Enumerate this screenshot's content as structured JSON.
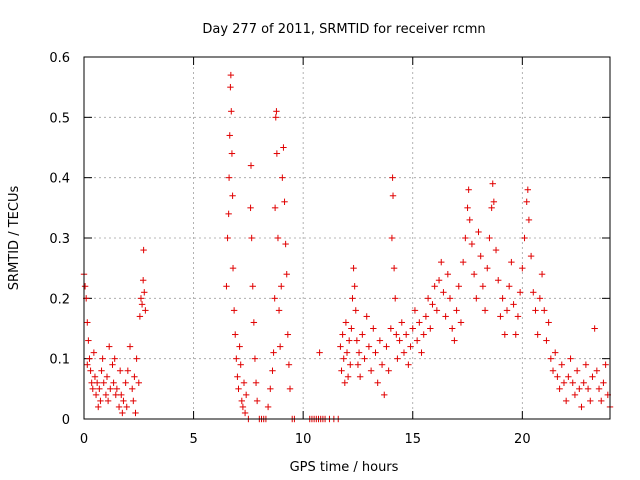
{
  "chart_data": {
    "type": "scatter",
    "title": "Day 277 of 2011, SRMTID for receiver rcmn",
    "xlabel": "GPS time / hours",
    "ylabel": "SRMTID / TECUs",
    "xlim": [
      0,
      24
    ],
    "ylim": [
      0,
      0.6
    ],
    "xticks": [
      0,
      5,
      10,
      15,
      20
    ],
    "xtick_labels": [
      "0",
      "5",
      "10",
      "15",
      "20"
    ],
    "yticks": [
      0,
      0.1,
      0.2,
      0.3,
      0.4,
      0.5,
      0.6
    ],
    "ytick_labels": [
      "0",
      "0.1",
      "0.2",
      "0.3",
      "0.4",
      "0.5",
      "0.6"
    ],
    "grid": true,
    "marker": "+",
    "series": [
      {
        "name": "SRMTID",
        "color": "#e00000",
        "points": [
          [
            0.0,
            0.24
          ],
          [
            0.05,
            0.22
          ],
          [
            0.1,
            0.2
          ],
          [
            0.15,
            0.16
          ],
          [
            0.2,
            0.13
          ],
          [
            0.25,
            0.1
          ],
          [
            0.3,
            0.08
          ],
          [
            0.35,
            0.06
          ],
          [
            0.4,
            0.05
          ],
          [
            0.5,
            0.07
          ],
          [
            0.55,
            0.04
          ],
          [
            0.6,
            0.06
          ],
          [
            0.7,
            0.05
          ],
          [
            0.75,
            0.03
          ],
          [
            0.8,
            0.08
          ],
          [
            0.9,
            0.06
          ],
          [
            1.0,
            0.04
          ],
          [
            1.05,
            0.07
          ],
          [
            1.1,
            0.03
          ],
          [
            1.2,
            0.05
          ],
          [
            1.3,
            0.09
          ],
          [
            1.35,
            0.06
          ],
          [
            1.4,
            0.1
          ],
          [
            1.5,
            0.05
          ],
          [
            1.6,
            0.02
          ],
          [
            1.7,
            0.04
          ],
          [
            1.75,
            0.01
          ],
          [
            1.8,
            0.03
          ],
          [
            1.9,
            0.06
          ],
          [
            2.0,
            0.08
          ],
          [
            2.1,
            0.12
          ],
          [
            2.2,
            0.05
          ],
          [
            2.3,
            0.07
          ],
          [
            2.4,
            0.1
          ],
          [
            2.5,
            0.06
          ],
          [
            2.55,
            0.17
          ],
          [
            2.6,
            0.2
          ],
          [
            2.65,
            0.19
          ],
          [
            2.7,
            0.23
          ],
          [
            2.72,
            0.28
          ],
          [
            2.75,
            0.21
          ],
          [
            2.8,
            0.18
          ],
          [
            0.15,
            0.09
          ],
          [
            0.45,
            0.11
          ],
          [
            0.65,
            0.02
          ],
          [
            0.85,
            0.1
          ],
          [
            1.15,
            0.12
          ],
          [
            1.45,
            0.04
          ],
          [
            1.65,
            0.08
          ],
          [
            1.95,
            0.02
          ],
          [
            2.25,
            0.03
          ],
          [
            2.35,
            0.01
          ],
          [
            6.5,
            0.22
          ],
          [
            6.55,
            0.3
          ],
          [
            6.6,
            0.34
          ],
          [
            6.62,
            0.4
          ],
          [
            6.65,
            0.47
          ],
          [
            6.68,
            0.55
          ],
          [
            6.7,
            0.57
          ],
          [
            6.72,
            0.51
          ],
          [
            6.75,
            0.44
          ],
          [
            6.78,
            0.37
          ],
          [
            6.8,
            0.25
          ],
          [
            6.85,
            0.18
          ],
          [
            6.9,
            0.14
          ],
          [
            6.95,
            0.1
          ],
          [
            7.0,
            0.07
          ],
          [
            7.05,
            0.05
          ],
          [
            7.1,
            0.12
          ],
          [
            7.15,
            0.09
          ],
          [
            7.2,
            0.03
          ],
          [
            7.25,
            0.02
          ],
          [
            7.3,
            0.06
          ],
          [
            7.35,
            0.01
          ],
          [
            7.4,
            0.04
          ],
          [
            7.5,
            0.0
          ],
          [
            7.6,
            0.35
          ],
          [
            7.62,
            0.42
          ],
          [
            7.65,
            0.3
          ],
          [
            7.7,
            0.22
          ],
          [
            7.75,
            0.16
          ],
          [
            7.8,
            0.1
          ],
          [
            7.85,
            0.06
          ],
          [
            7.9,
            0.03
          ],
          [
            8.0,
            0.0
          ],
          [
            8.1,
            0.0
          ],
          [
            8.2,
            0.0
          ],
          [
            8.3,
            0.0
          ],
          [
            8.4,
            0.02
          ],
          [
            8.5,
            0.05
          ],
          [
            8.6,
            0.08
          ],
          [
            8.65,
            0.11
          ],
          [
            8.7,
            0.2
          ],
          [
            8.72,
            0.35
          ],
          [
            8.75,
            0.5
          ],
          [
            8.78,
            0.51
          ],
          [
            8.8,
            0.44
          ],
          [
            8.85,
            0.3
          ],
          [
            8.9,
            0.18
          ],
          [
            8.95,
            0.12
          ],
          [
            9.0,
            0.22
          ],
          [
            9.05,
            0.4
          ],
          [
            9.1,
            0.45
          ],
          [
            9.15,
            0.36
          ],
          [
            9.2,
            0.29
          ],
          [
            9.25,
            0.24
          ],
          [
            9.3,
            0.14
          ],
          [
            9.35,
            0.09
          ],
          [
            9.4,
            0.05
          ],
          [
            9.5,
            0.0
          ],
          [
            9.6,
            0.0
          ],
          [
            10.3,
            0.0
          ],
          [
            10.4,
            0.0
          ],
          [
            10.5,
            0.0
          ],
          [
            10.6,
            0.0
          ],
          [
            10.7,
            0.0
          ],
          [
            10.75,
            0.11
          ],
          [
            10.8,
            0.0
          ],
          [
            10.9,
            0.0
          ],
          [
            11.0,
            0.0
          ],
          [
            11.2,
            0.0
          ],
          [
            11.4,
            0.0
          ],
          [
            11.6,
            0.0
          ],
          [
            11.7,
            0.12
          ],
          [
            11.75,
            0.08
          ],
          [
            11.8,
            0.14
          ],
          [
            11.85,
            0.1
          ],
          [
            11.9,
            0.06
          ],
          [
            11.95,
            0.16
          ],
          [
            12.0,
            0.11
          ],
          [
            12.05,
            0.07
          ],
          [
            12.1,
            0.13
          ],
          [
            12.15,
            0.09
          ],
          [
            12.2,
            0.15
          ],
          [
            12.25,
            0.2
          ],
          [
            12.3,
            0.25
          ],
          [
            12.35,
            0.22
          ],
          [
            12.4,
            0.18
          ],
          [
            12.45,
            0.13
          ],
          [
            12.5,
            0.09
          ],
          [
            12.55,
            0.11
          ],
          [
            12.6,
            0.07
          ],
          [
            12.7,
            0.14
          ],
          [
            12.8,
            0.1
          ],
          [
            12.9,
            0.17
          ],
          [
            13.0,
            0.12
          ],
          [
            13.1,
            0.08
          ],
          [
            13.2,
            0.15
          ],
          [
            13.3,
            0.11
          ],
          [
            13.4,
            0.06
          ],
          [
            13.5,
            0.13
          ],
          [
            13.6,
            0.09
          ],
          [
            13.7,
            0.04
          ],
          [
            13.8,
            0.12
          ],
          [
            13.9,
            0.08
          ],
          [
            14.0,
            0.15
          ],
          [
            14.05,
            0.3
          ],
          [
            14.08,
            0.4
          ],
          [
            14.1,
            0.37
          ],
          [
            14.15,
            0.25
          ],
          [
            14.2,
            0.2
          ],
          [
            14.25,
            0.14
          ],
          [
            14.3,
            0.1
          ],
          [
            14.4,
            0.13
          ],
          [
            14.5,
            0.16
          ],
          [
            14.6,
            0.11
          ],
          [
            14.7,
            0.14
          ],
          [
            14.8,
            0.09
          ],
          [
            14.9,
            0.12
          ],
          [
            15.0,
            0.15
          ],
          [
            15.1,
            0.18
          ],
          [
            15.2,
            0.13
          ],
          [
            15.3,
            0.16
          ],
          [
            15.4,
            0.11
          ],
          [
            15.5,
            0.14
          ],
          [
            15.6,
            0.17
          ],
          [
            15.7,
            0.2
          ],
          [
            15.8,
            0.15
          ],
          [
            15.9,
            0.19
          ],
          [
            16.0,
            0.22
          ],
          [
            16.1,
            0.18
          ],
          [
            16.2,
            0.23
          ],
          [
            16.3,
            0.26
          ],
          [
            16.4,
            0.21
          ],
          [
            16.5,
            0.17
          ],
          [
            16.6,
            0.24
          ],
          [
            16.7,
            0.2
          ],
          [
            16.8,
            0.15
          ],
          [
            16.9,
            0.13
          ],
          [
            17.0,
            0.18
          ],
          [
            17.1,
            0.22
          ],
          [
            17.2,
            0.16
          ],
          [
            17.3,
            0.26
          ],
          [
            17.4,
            0.3
          ],
          [
            17.5,
            0.35
          ],
          [
            17.55,
            0.38
          ],
          [
            17.6,
            0.33
          ],
          [
            17.7,
            0.29
          ],
          [
            17.8,
            0.24
          ],
          [
            17.9,
            0.2
          ],
          [
            18.0,
            0.31
          ],
          [
            18.1,
            0.27
          ],
          [
            18.2,
            0.22
          ],
          [
            18.3,
            0.18
          ],
          [
            18.4,
            0.25
          ],
          [
            18.5,
            0.3
          ],
          [
            18.6,
            0.35
          ],
          [
            18.65,
            0.39
          ],
          [
            18.7,
            0.36
          ],
          [
            18.8,
            0.28
          ],
          [
            18.9,
            0.23
          ],
          [
            19.0,
            0.17
          ],
          [
            19.1,
            0.2
          ],
          [
            19.2,
            0.14
          ],
          [
            19.3,
            0.18
          ],
          [
            19.4,
            0.22
          ],
          [
            19.5,
            0.26
          ],
          [
            19.6,
            0.19
          ],
          [
            19.7,
            0.14
          ],
          [
            19.8,
            0.17
          ],
          [
            19.9,
            0.21
          ],
          [
            20.0,
            0.25
          ],
          [
            20.1,
            0.3
          ],
          [
            20.2,
            0.36
          ],
          [
            20.25,
            0.38
          ],
          [
            20.3,
            0.33
          ],
          [
            20.4,
            0.27
          ],
          [
            20.5,
            0.21
          ],
          [
            20.6,
            0.18
          ],
          [
            20.7,
            0.14
          ],
          [
            20.8,
            0.2
          ],
          [
            20.9,
            0.24
          ],
          [
            21.0,
            0.18
          ],
          [
            21.1,
            0.13
          ],
          [
            21.2,
            0.16
          ],
          [
            21.3,
            0.1
          ],
          [
            21.4,
            0.08
          ],
          [
            21.5,
            0.11
          ],
          [
            21.6,
            0.07
          ],
          [
            21.7,
            0.05
          ],
          [
            21.8,
            0.09
          ],
          [
            21.9,
            0.06
          ],
          [
            22.0,
            0.03
          ],
          [
            22.1,
            0.07
          ],
          [
            22.2,
            0.1
          ],
          [
            22.3,
            0.06
          ],
          [
            22.4,
            0.04
          ],
          [
            22.5,
            0.08
          ],
          [
            22.6,
            0.05
          ],
          [
            22.7,
            0.02
          ],
          [
            22.8,
            0.06
          ],
          [
            22.9,
            0.09
          ],
          [
            23.0,
            0.05
          ],
          [
            23.1,
            0.03
          ],
          [
            23.2,
            0.07
          ],
          [
            23.3,
            0.15
          ],
          [
            23.4,
            0.08
          ],
          [
            23.5,
            0.05
          ],
          [
            23.6,
            0.03
          ],
          [
            23.7,
            0.06
          ],
          [
            23.8,
            0.09
          ],
          [
            23.9,
            0.04
          ],
          [
            24.0,
            0.02
          ]
        ]
      }
    ]
  }
}
